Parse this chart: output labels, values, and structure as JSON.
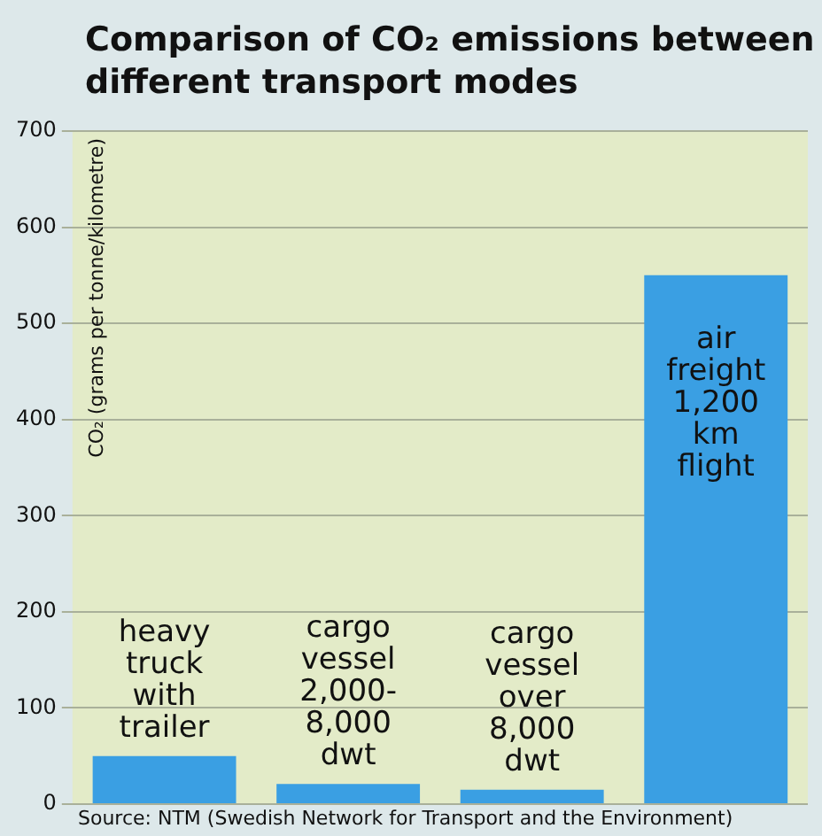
{
  "chart_data": {
    "type": "bar",
    "title": "Comparison of CO₂ emissions between different transport modes",
    "ylabel": "CO₂ (grams per tonne/kilometre)",
    "categories": [
      "heavy truck with trailer",
      "cargo vessel 2,000-8,000 dwt",
      "cargo vessel over 8,000 dwt",
      "air freight 1,200 km flight"
    ],
    "values": [
      50,
      21,
      15,
      550
    ],
    "color": "#3a9fe3",
    "ylim": [
      0,
      700
    ],
    "yticks": [
      0,
      100,
      200,
      300,
      400,
      500,
      600,
      700
    ],
    "grid": "y",
    "legend": false,
    "annotations": [
      "Source: NTM (Swedish Network for Transport and the Environment)"
    ]
  }
}
